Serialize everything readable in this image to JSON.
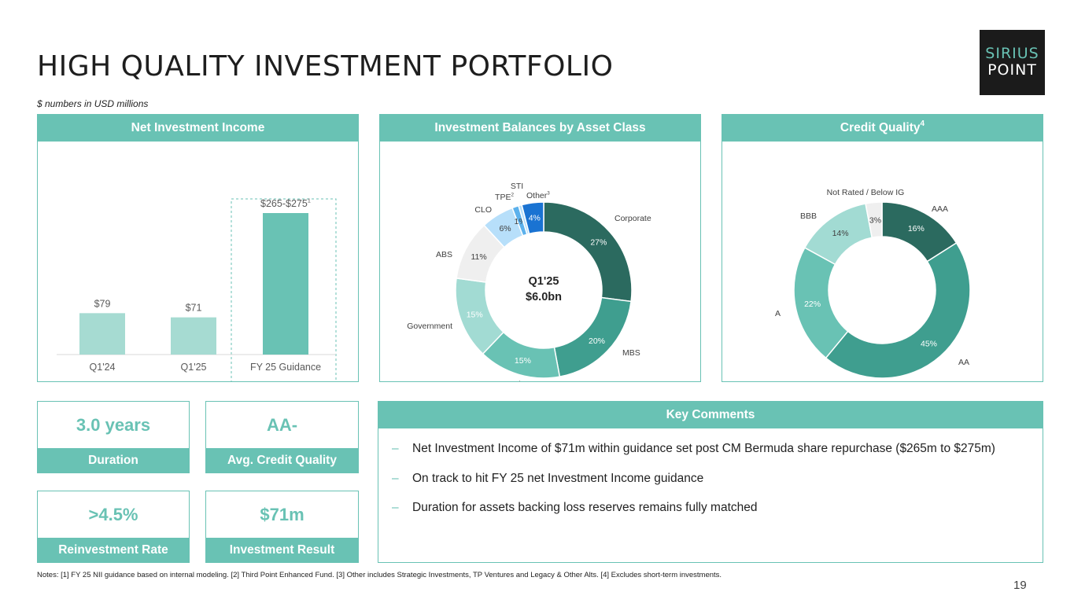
{
  "title": "HIGH QUALITY INVESTMENT PORTFOLIO",
  "subtitle": "$ numbers in USD millions",
  "logo": {
    "line1": "SIRIUS",
    "line2": "POINT"
  },
  "colors": {
    "teal": "#69c2b4",
    "teal_light": "#a6dbd2",
    "dark_green": "#2b6a5f",
    "mid_green": "#3f9e8f",
    "light_teal": "#a2dbd3",
    "grey": "#efefef",
    "light_blue": "#b7dffa",
    "blue": "#5cb1ec",
    "dark_blue": "#1a73d2"
  },
  "panels": {
    "nii": {
      "title": "Net Investment Income"
    },
    "balances": {
      "title": "Investment Balances by Asset Class"
    },
    "credit": {
      "title": "Credit Quality",
      "title_sup": "4"
    },
    "comments": {
      "title": "Key Comments"
    }
  },
  "chart_data": [
    {
      "type": "bar",
      "title": "Net Investment Income",
      "categories": [
        "Q1'24",
        "Q1'25",
        "FY 25 Guidance"
      ],
      "values": [
        79,
        71,
        270
      ],
      "data_labels": [
        "$79",
        "$71",
        "$265-$275"
      ],
      "data_label_sups": [
        "",
        "",
        "1"
      ],
      "ylim": [
        0,
        300
      ],
      "highlight": "FY 25 Guidance",
      "grid": false
    },
    {
      "type": "pie",
      "title": "Investment Balances by Asset Class",
      "center_label": [
        "Q1'25",
        "$6.0bn"
      ],
      "slices": [
        {
          "label": "Corporate",
          "sup": "",
          "value": 27,
          "pct": "27%"
        },
        {
          "label": "MBS",
          "sup": "",
          "value": 20,
          "pct": "20%"
        },
        {
          "label": "Cash",
          "sup": "",
          "value": 15,
          "pct": "15%"
        },
        {
          "label": "Government",
          "sup": "",
          "value": 15,
          "pct": "15%"
        },
        {
          "label": "ABS",
          "sup": "",
          "value": 11,
          "pct": "11%"
        },
        {
          "label": "CLO",
          "sup": "",
          "value": 6,
          "pct": "6%"
        },
        {
          "label": "TPE",
          "sup": "2",
          "value": 1.2,
          "pct": "1%"
        },
        {
          "label": "STI",
          "sup": "",
          "value": 0.6,
          "pct": ""
        },
        {
          "label": "Other",
          "sup": "3",
          "value": 4,
          "pct": "4%"
        }
      ]
    },
    {
      "type": "pie",
      "title": "Credit Quality",
      "slices": [
        {
          "label": "AAA",
          "value": 16,
          "pct": "16%"
        },
        {
          "label": "AA",
          "value": 45,
          "pct": "45%"
        },
        {
          "label": "A",
          "value": 22,
          "pct": "22%"
        },
        {
          "label": "BBB",
          "value": 14,
          "pct": "14%"
        },
        {
          "label": "Not Rated / Below IG",
          "value": 3,
          "pct": "3%"
        }
      ]
    }
  ],
  "kpis": [
    {
      "value": "3.0 years",
      "label": "Duration"
    },
    {
      "value": "AA-",
      "label": "Avg. Credit Quality"
    },
    {
      "value": ">4.5%",
      "label": "Reinvestment Rate"
    },
    {
      "value": "$71m",
      "label": "Investment Result"
    }
  ],
  "comments": {
    "bullet": "–",
    "items": [
      "Net Investment Income of $71m within guidance set post CM Bermuda share repurchase ($265m to $275m)",
      "On track to hit FY 25 net Investment Income guidance",
      "Duration for assets backing loss reserves remains fully matched"
    ]
  },
  "notes": "Notes: [1] FY 25 NII guidance based on internal modeling. [2] Third Point Enhanced Fund. [3] Other includes Strategic Investments, TP Ventures and Legacy & Other Alts. [4] Excludes short-term investments.",
  "page_number": "19"
}
